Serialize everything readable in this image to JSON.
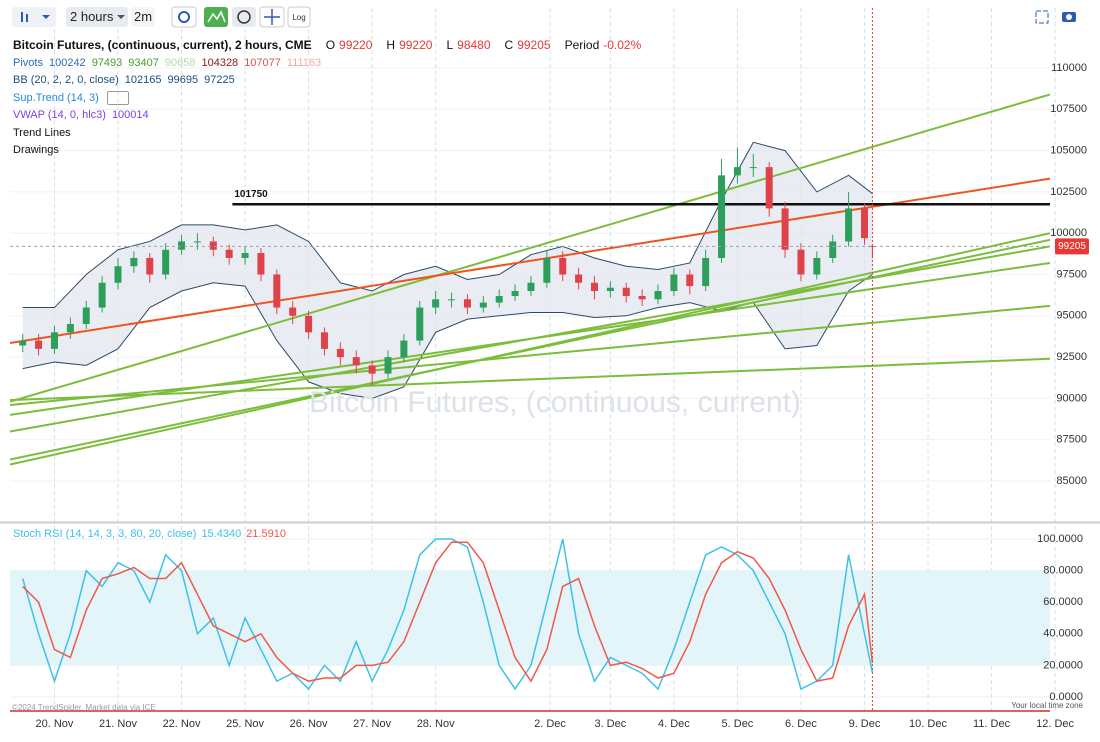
{
  "toolbar": {
    "interval": "2 hours",
    "resolution": "2m",
    "log": "Log"
  },
  "chart_data": [
    {
      "type": "candlestick",
      "title": "Bitcoin Futures, (continuous, current), 2 hours, CME",
      "ohlc": [
        {
          "key": "O",
          "value": 99220
        },
        {
          "key": "H",
          "value": 99220
        },
        {
          "key": "L",
          "value": 98480
        },
        {
          "key": "C",
          "value": 99205
        }
      ],
      "period": {
        "key": "Period",
        "value": "-0.02%"
      },
      "indicators": [
        {
          "name": "Pivots",
          "color": "#2b6cb0",
          "values": [
            100242,
            97493,
            93407,
            90658,
            104328,
            107077,
            111163
          ],
          "colors": [
            "#2b6cb0",
            "#4c9a2a",
            "#4c9a2a",
            "#b9d8a8",
            "#8b1a1a",
            "#d9534f",
            "#f0a8a8"
          ]
        },
        {
          "name": "BB (20, 2, 2, 0, close)",
          "color": "#1f4e79",
          "values": [
            102165,
            99695,
            97225
          ],
          "colors": [
            "#1f4e79",
            "#1f4e79",
            "#1f4e79"
          ]
        },
        {
          "name": "Sup.Trend (14, 3)",
          "color": "#1e88e5",
          "hidden": true
        },
        {
          "name": "VWAP (14, 0, hlc3)",
          "color": "#7b3fe4",
          "values": [
            100014
          ],
          "colors": [
            "#7b3fe4"
          ]
        },
        {
          "name": "Trend Lines",
          "color": "#111111"
        },
        {
          "name": "Drawings",
          "color": "#111111"
        }
      ],
      "watermark": "Bitcoin Futures, (continuous, current)",
      "x": [
        -0.5,
        -0.25,
        0,
        0.25,
        0.5,
        0.75,
        1,
        1.25,
        1.5,
        1.75,
        2,
        2.25,
        2.5,
        2.75,
        3,
        3.25,
        3.5,
        3.75,
        4,
        4.25,
        4.5,
        4.75,
        5,
        5.25,
        5.5,
        5.75,
        6,
        6.25,
        6.5,
        6.75,
        7,
        7.25,
        7.5,
        7.75,
        8,
        8.25,
        8.5,
        8.75,
        9,
        9.25,
        9.5,
        9.75,
        10,
        10.25,
        10.5,
        10.75,
        11,
        11.25,
        11.5,
        11.75,
        12,
        12.25,
        12.5,
        12.75,
        12.875
      ],
      "open": [
        93200,
        93500,
        93000,
        94000,
        94500,
        95500,
        97000,
        98000,
        98500,
        97500,
        99000,
        99500,
        99500,
        99000,
        98500,
        98800,
        97500,
        95500,
        95000,
        94000,
        93000,
        92500,
        92000,
        91500,
        92500,
        93500,
        95500,
        96000,
        96000,
        95500,
        95800,
        96200,
        96500,
        97000,
        98500,
        97500,
        97000,
        96500,
        96700,
        96200,
        96000,
        96500,
        97500,
        96800,
        98500,
        103500,
        104000,
        104000,
        101500,
        99000,
        97500,
        98500,
        99500,
        101500,
        99220
      ],
      "high": [
        93900,
        93900,
        94400,
        94900,
        95900,
        97400,
        98500,
        98900,
        98800,
        99400,
        99900,
        100000,
        99800,
        99300,
        99200,
        99100,
        97800,
        95900,
        95300,
        94300,
        93400,
        92900,
        92300,
        92900,
        93900,
        95900,
        96500,
        96400,
        96300,
        96200,
        96600,
        96900,
        97400,
        99000,
        98900,
        97900,
        97400,
        97100,
        97000,
        96600,
        96900,
        97900,
        97800,
        99000,
        104500,
        105200,
        104800,
        104300,
        101900,
        99400,
        98900,
        99900,
        102500,
        101800,
        99220
      ],
      "low": [
        92800,
        92600,
        92700,
        93600,
        94200,
        95200,
        96600,
        97600,
        97000,
        97200,
        98700,
        99000,
        98600,
        98100,
        98100,
        97100,
        95100,
        94500,
        93600,
        92600,
        92000,
        91500,
        90800,
        91200,
        92200,
        93200,
        95100,
        95500,
        95100,
        95200,
        95500,
        95900,
        96200,
        96700,
        97100,
        96600,
        96000,
        96100,
        95800,
        95600,
        95700,
        96200,
        96300,
        96500,
        98200,
        103000,
        103400,
        101000,
        98500,
        97100,
        97200,
        98200,
        99200,
        99300,
        98480
      ],
      "close": [
        93500,
        93000,
        94000,
        94500,
        95500,
        97000,
        98000,
        98500,
        97500,
        99000,
        99500,
        99500,
        99000,
        98500,
        98800,
        97500,
        95500,
        95000,
        94000,
        93000,
        92500,
        92000,
        91500,
        92500,
        93500,
        95500,
        96000,
        96000,
        95500,
        95800,
        96200,
        96500,
        97000,
        98500,
        97500,
        97000,
        96500,
        96700,
        96200,
        96000,
        96500,
        97500,
        96800,
        98500,
        103500,
        104000,
        104000,
        101500,
        99000,
        97500,
        98500,
        99500,
        101500,
        99700,
        99205
      ],
      "up_color": "#2e9e5b",
      "down_color": "#e0424a",
      "xlim": [
        -0.7,
        15.67
      ],
      "xticks": [
        {
          "value": 0,
          "label": "20. Nov"
        },
        {
          "value": 1,
          "label": "21. Nov"
        },
        {
          "value": 2,
          "label": "22. Nov"
        },
        {
          "value": 3,
          "label": "25. Nov"
        },
        {
          "value": 4,
          "label": "26. Nov"
        },
        {
          "value": 5,
          "label": "27. Nov"
        },
        {
          "value": 6,
          "label": "28. Nov"
        },
        {
          "value": 7.8,
          "label": "2. Dec"
        },
        {
          "value": 8.75,
          "label": "3. Dec"
        },
        {
          "value": 9.75,
          "label": "4. Dec"
        },
        {
          "value": 10.75,
          "label": "5. Dec"
        },
        {
          "value": 11.75,
          "label": "6. Dec"
        },
        {
          "value": 12.75,
          "label": "9. Dec"
        },
        {
          "value": 13.75,
          "label": "10. Dec"
        },
        {
          "value": 14.75,
          "label": "11. Dec"
        },
        {
          "value": 15.75,
          "label": "12. Dec"
        }
      ],
      "ylim": [
        82520,
        113630
      ],
      "yticks": [
        85000,
        87500,
        90000,
        92500,
        95000,
        97500,
        100000,
        102500,
        105000,
        107500,
        110000
      ],
      "grid": true,
      "last_price": 99205,
      "levels": [
        {
          "value": 101750,
          "x_start": 2.8,
          "color": "#111111"
        }
      ],
      "bb": {
        "color": "#2b4a66",
        "fill": "#dfe6ee",
        "x": [
          -0.5,
          0,
          0.5,
          1,
          1.5,
          2,
          2.5,
          3,
          3.5,
          4,
          4.5,
          5,
          5.5,
          6,
          6.5,
          7,
          7.5,
          8,
          8.5,
          9,
          9.5,
          10,
          10.5,
          11,
          11.5,
          12,
          12.5,
          12.875
        ],
        "upper": [
          95500,
          95500,
          97500,
          99000,
          99500,
          100500,
          100500,
          100200,
          100500,
          99500,
          97000,
          96500,
          97500,
          98000,
          97200,
          97500,
          98700,
          99200,
          98500,
          98000,
          97800,
          98200,
          102000,
          105500,
          105000,
          102500,
          103500,
          102400
        ],
        "lower": [
          91800,
          92200,
          92000,
          93000,
          95500,
          96500,
          97000,
          96800,
          93500,
          91000,
          90300,
          90000,
          90700,
          94000,
          94800,
          95000,
          95200,
          95200,
          94900,
          95000,
          95500,
          95800,
          95300,
          95800,
          93000,
          93200,
          96500,
          97500
        ]
      },
      "trend_lines": [
        {
          "color": "#7cbd3c",
          "x": [
            -0.7,
            15.67
          ],
          "y": [
            89800,
            108400
          ]
        },
        {
          "color": "#f0541e",
          "x": [
            -0.7,
            15.67
          ],
          "y": [
            93350,
            103300
          ]
        },
        {
          "color": "#7cbd3c",
          "x": [
            -0.7,
            15.67
          ],
          "y": [
            86000,
            100000
          ]
        },
        {
          "color": "#7cbd3c",
          "x": [
            -0.7,
            15.67
          ],
          "y": [
            86300,
            99600
          ]
        },
        {
          "color": "#7cbd3c",
          "x": [
            -0.7,
            15.67
          ],
          "y": [
            88000,
            99200
          ]
        },
        {
          "color": "#7cbd3c",
          "x": [
            -0.7,
            15.67
          ],
          "y": [
            89000,
            98200
          ]
        },
        {
          "color": "#7cbd3c",
          "x": [
            -0.7,
            15.67
          ],
          "y": [
            89600,
            95600
          ]
        },
        {
          "color": "#7cbd3c",
          "x": [
            -0.7,
            15.67
          ],
          "y": [
            89900,
            92400
          ]
        }
      ]
    },
    {
      "type": "line",
      "title": "Stoch RSI (14, 14, 3, 3, 80, 20, close)",
      "legend_values": [
        "15.4340",
        "21.5910"
      ],
      "x": [
        -0.5,
        -0.25,
        0,
        0.25,
        0.5,
        0.75,
        1,
        1.25,
        1.5,
        1.75,
        2,
        2.25,
        2.5,
        2.75,
        3,
        3.25,
        3.5,
        3.75,
        4,
        4.25,
        4.5,
        4.75,
        5,
        5.25,
        5.5,
        5.75,
        6,
        6.25,
        6.5,
        6.75,
        7,
        7.25,
        7.5,
        7.75,
        8,
        8.25,
        8.5,
        8.75,
        9,
        9.25,
        9.5,
        9.75,
        10,
        10.25,
        10.5,
        10.75,
        11,
        11.25,
        11.5,
        11.75,
        12,
        12.25,
        12.5,
        12.75,
        12.875
      ],
      "series": [
        {
          "color": "#3ec1e6",
          "values": [
            75,
            40,
            10,
            40,
            80,
            70,
            85,
            80,
            60,
            90,
            80,
            40,
            50,
            20,
            50,
            30,
            10,
            15,
            5,
            20,
            10,
            35,
            10,
            30,
            55,
            90,
            100,
            100,
            95,
            60,
            20,
            5,
            20,
            60,
            100,
            40,
            10,
            25,
            20,
            15,
            5,
            30,
            60,
            90,
            95,
            90,
            80,
            60,
            40,
            5,
            10,
            20,
            90,
            40,
            15.434
          ]
        },
        {
          "color": "#f0584a",
          "values": [
            70,
            60,
            30,
            25,
            55,
            75,
            78,
            82,
            75,
            75,
            85,
            65,
            45,
            40,
            35,
            40,
            25,
            15,
            10,
            12,
            12,
            20,
            20,
            22,
            35,
            60,
            85,
            98,
            98,
            85,
            55,
            25,
            10,
            30,
            70,
            75,
            45,
            20,
            22,
            18,
            12,
            15,
            35,
            65,
            85,
            92,
            88,
            75,
            55,
            30,
            10,
            12,
            45,
            65,
            21.591
          ]
        }
      ],
      "band": [
        20,
        80
      ],
      "xlim": [
        -0.7,
        15.67
      ],
      "ylim": [
        -8.9,
        108.9
      ],
      "yticks": [
        {
          "value": 0,
          "label": "0.0000"
        },
        {
          "value": 20,
          "label": "20.0000"
        },
        {
          "value": 40,
          "label": "40.0000"
        },
        {
          "value": 60,
          "label": "60.0000"
        },
        {
          "value": 80,
          "label": "80.0000"
        },
        {
          "value": 100,
          "label": "100.0000"
        }
      ]
    }
  ],
  "footer": {
    "credit": "©2024 TrendSpider. Market data via ICE",
    "timezone": "Your local time zone"
  }
}
